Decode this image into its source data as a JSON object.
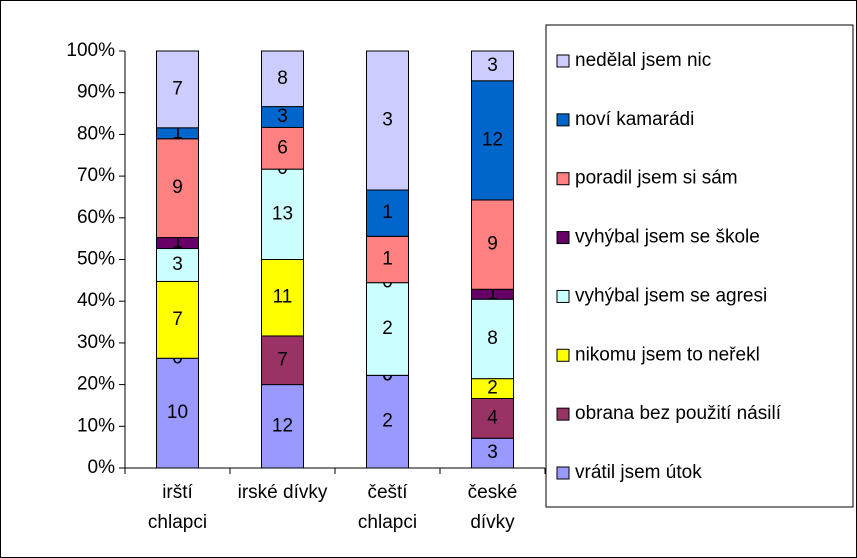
{
  "chart_data": {
    "type": "bar",
    "stacking": "percent",
    "categories": [
      "irští chlapci",
      "irské dívky",
      "čeští chlapci",
      "české dívky"
    ],
    "series": [
      {
        "name": "vrátil jsem útok",
        "color": "#9999ff",
        "values": [
          10,
          12,
          2,
          3
        ]
      },
      {
        "name": "obrana bez použití násilí",
        "color": "#993366",
        "values": [
          0,
          7,
          0,
          4
        ]
      },
      {
        "name": "nikomu jsem to neřekl",
        "color": "#ffff00",
        "values": [
          7,
          11,
          0,
          2
        ]
      },
      {
        "name": "vyhýbal jsem se agresi",
        "color": "#ccffff",
        "values": [
          3,
          13,
          2,
          8
        ]
      },
      {
        "name": "vyhýbal jsem se škole",
        "color": "#660066",
        "values": [
          1,
          0,
          0,
          1
        ]
      },
      {
        "name": "poradil jsem si sám",
        "color": "#ff8080",
        "values": [
          9,
          6,
          1,
          9
        ]
      },
      {
        "name": "noví kamarádi",
        "color": "#0066cc",
        "values": [
          1,
          3,
          1,
          12
        ]
      },
      {
        "name": "nedělal jsem nic",
        "color": "#ccccff",
        "values": [
          7,
          8,
          3,
          3
        ]
      }
    ],
    "ylim": [
      0,
      100
    ],
    "yticks": [
      {
        "value": 0,
        "label": "0%"
      },
      {
        "value": 10,
        "label": "10%"
      },
      {
        "value": 20,
        "label": "20%"
      },
      {
        "value": 30,
        "label": "30%"
      },
      {
        "value": 40,
        "label": "40%"
      },
      {
        "value": 50,
        "label": "50%"
      },
      {
        "value": 60,
        "label": "60%"
      },
      {
        "value": 70,
        "label": "70%"
      },
      {
        "value": 80,
        "label": "80%"
      },
      {
        "value": 90,
        "label": "90%"
      },
      {
        "value": 100,
        "label": "100%"
      }
    ],
    "legend": "right"
  }
}
